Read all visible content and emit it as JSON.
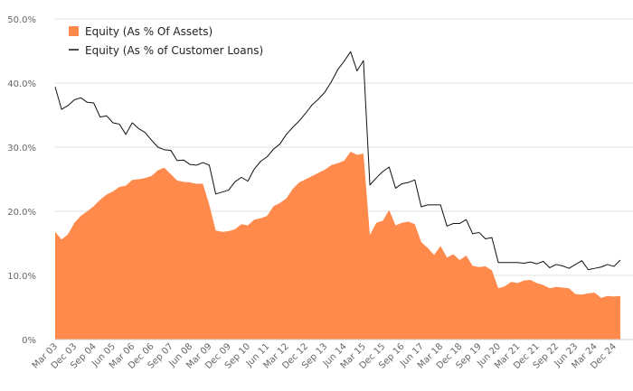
{
  "chart_data": {
    "type": "area",
    "title": "",
    "xlabel": "",
    "ylabel": "",
    "ylim": [
      0,
      50
    ],
    "y_ticks": [
      "0%",
      "10.0%",
      "20.0%",
      "30.0%",
      "40.0%",
      "50.0%"
    ],
    "x_tick_labels": [
      "Mar 03",
      "Dec 03",
      "Sep 04",
      "Jun 05",
      "Mar 06",
      "Dec 06",
      "Sep 07",
      "Jun 08",
      "Mar 09",
      "Dec 09",
      "Sep 10",
      "Jun 11",
      "Mar 12",
      "Dec 12",
      "Sep 13",
      "Jun 14",
      "Mar 15",
      "Dec 15",
      "Sep 16",
      "Jun 17",
      "Mar 18",
      "Dec 18",
      "Sep 19",
      "Jun 20",
      "Mar 21",
      "Dec 21",
      "Sep 22",
      "Jun 23",
      "Mar 24",
      "Dec 24"
    ],
    "x_tick_start": "Mar 03",
    "x_tick_step_quarters": 3,
    "x_start": "Mar 03",
    "x_end": "Mar 25",
    "x_step": "quarter",
    "legend_position": "top-left",
    "grid": true,
    "series": [
      {
        "name": "Equity (As % Of Assets)",
        "type": "area",
        "color": "#ff8a4c",
        "values": [
          16.8,
          15.6,
          16.4,
          18.2,
          19.3,
          20.0,
          20.8,
          21.8,
          22.6,
          23.1,
          23.8,
          24.0,
          24.9,
          25.0,
          25.2,
          25.5,
          26.4,
          26.8,
          25.8,
          24.8,
          24.6,
          24.5,
          24.3,
          24.3,
          21.0,
          17.0,
          16.8,
          16.9,
          17.2,
          18.0,
          17.8,
          18.7,
          18.9,
          19.3,
          20.8,
          21.3,
          22.0,
          23.5,
          24.5,
          25.0,
          25.5,
          26.0,
          26.5,
          27.2,
          27.5,
          27.9,
          29.3,
          28.8,
          29.0,
          16.3,
          18.2,
          18.5,
          20.2,
          17.8,
          18.2,
          18.4,
          18.0,
          15.2,
          14.3,
          13.2,
          14.6,
          12.8,
          13.3,
          12.4,
          13.1,
          11.5,
          11.3,
          11.4,
          10.8,
          8.0,
          8.3,
          9.0,
          8.8,
          9.2,
          9.3,
          8.8,
          8.5,
          8.0,
          8.2,
          8.1,
          8.0,
          7.1,
          7.0,
          7.2,
          7.3,
          6.5,
          6.8,
          6.7,
          6.8
        ]
      },
      {
        "name": "Equity (As % of Customer Loans)",
        "type": "line",
        "color": "#111111",
        "values": [
          39.4,
          35.9,
          36.5,
          37.4,
          37.7,
          37.0,
          36.9,
          34.7,
          34.9,
          33.8,
          33.6,
          32.0,
          33.8,
          32.9,
          32.3,
          31.1,
          30.0,
          29.6,
          29.5,
          27.9,
          28.0,
          27.3,
          27.2,
          27.6,
          27.2,
          22.7,
          23.0,
          23.3,
          24.6,
          25.3,
          24.7,
          26.6,
          27.8,
          28.5,
          29.7,
          30.5,
          32.0,
          33.1,
          34.1,
          35.3,
          36.6,
          37.5,
          38.6,
          40.2,
          42.1,
          43.4,
          44.9,
          41.9,
          43.5,
          24.1,
          25.2,
          26.2,
          26.9,
          23.6,
          24.3,
          24.5,
          24.9,
          20.7,
          21.0,
          21.0,
          21.0,
          17.7,
          18.1,
          18.1,
          18.7,
          16.5,
          16.7,
          15.7,
          15.9,
          12.0,
          12.0,
          12.0,
          12.0,
          11.9,
          12.1,
          11.8,
          12.2,
          11.2,
          11.7,
          11.5,
          11.1,
          11.7,
          12.3,
          10.9,
          11.1,
          11.3,
          11.7,
          11.4,
          12.4
        ]
      }
    ]
  }
}
